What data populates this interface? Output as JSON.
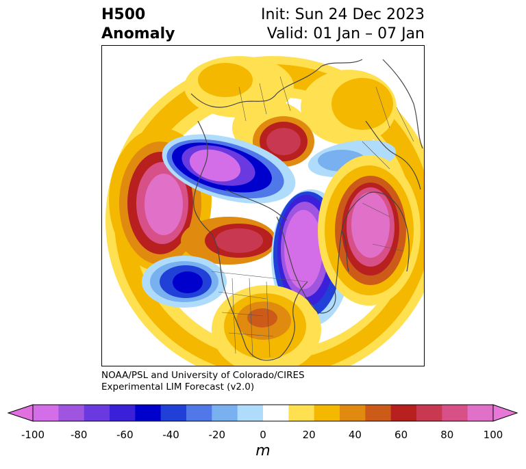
{
  "title": {
    "left_line1": "H500",
    "left_line2": "Anomaly",
    "right_line1": "Init: Sun 24 Dec 2023",
    "right_line2": "Valid: 01 Jan – 07 Jan"
  },
  "credit": {
    "line1": "NOAA/PSL and University of Colorado/CIRES",
    "line2": "Experimental LIM Forecast (v2.0)"
  },
  "colorbar": {
    "unit": "m",
    "ticks": [
      "-100",
      "-80",
      "-60",
      "-40",
      "-20",
      "0",
      "20",
      "40",
      "60",
      "80",
      "100"
    ],
    "colors": [
      "#d46ee8",
      "#a055e0",
      "#6a3ae0",
      "#3a20d8",
      "#0000cc",
      "#2040d8",
      "#5078e8",
      "#78b0f0",
      "#b0dcfc",
      "#ffffff",
      "#ffe050",
      "#f5b800",
      "#e08a10",
      "#cc5a18",
      "#b82020",
      "#c83850",
      "#d85088",
      "#e070c8"
    ],
    "extend_low_color": "#e070e0",
    "extend_high_color": "#e878d8"
  },
  "map": {
    "projection": "north-polar-stereographic",
    "features": [
      "coastlines",
      "country-borders",
      "us-state-borders",
      "canada-province-borders"
    ]
  }
}
